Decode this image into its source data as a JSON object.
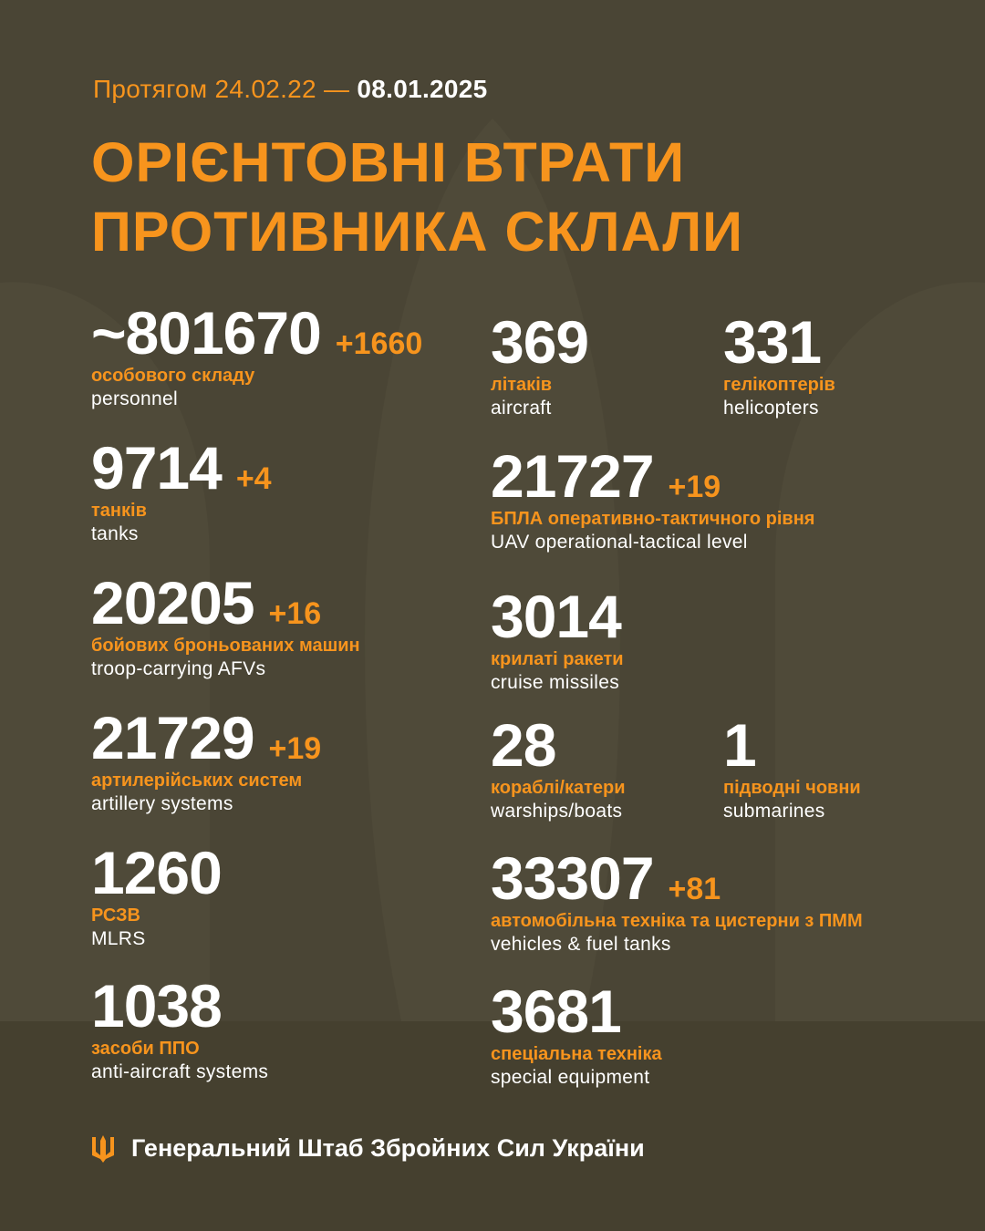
{
  "header": {
    "period_prefix": "Протягом 24.02.22 —",
    "period_end": "08.01.2025",
    "title_line1": "ОРІЄНТОВНІ ВТРАТИ",
    "title_line2": "ПРОТИВНИКА СКЛАЛИ"
  },
  "colors": {
    "background": "#4a4535",
    "accent": "#f7941d",
    "text": "#ffffff"
  },
  "stats": [
    {
      "value": "~801670",
      "delta": "+1660",
      "uk": "особового складу",
      "en": "personnel"
    },
    {
      "value": "9714",
      "delta": "+4",
      "uk": "танків",
      "en": "tanks"
    },
    {
      "value": "20205",
      "delta": "+16",
      "uk": "бойових броньованих машин",
      "en": "troop-carrying AFVs"
    },
    {
      "value": "21729",
      "delta": "+19",
      "uk": "артилерійських систем",
      "en": "artillery systems"
    },
    {
      "value": "1260",
      "delta": "",
      "uk": "РСЗВ",
      "en": "MLRS"
    },
    {
      "value": "1038",
      "delta": "",
      "uk": "засоби ППО",
      "en": "anti-aircraft systems"
    },
    {
      "value": "369",
      "delta": "",
      "uk": "літаків",
      "en": "aircraft"
    },
    {
      "value": "331",
      "delta": "",
      "uk": "гелікоптерів",
      "en": "helicopters"
    },
    {
      "value": "21727",
      "delta": "+19",
      "uk": "БПЛА оперативно-тактичного рівня",
      "en": "UAV operational-tactical level"
    },
    {
      "value": "3014",
      "delta": "",
      "uk": "крилаті ракети",
      "en": "cruise missiles"
    },
    {
      "value": "28",
      "delta": "",
      "uk": "кораблі/катери",
      "en": "warships/boats"
    },
    {
      "value": "1",
      "delta": "",
      "uk": "підводні човни",
      "en": "submarines"
    },
    {
      "value": "33307",
      "delta": "+81",
      "uk": "автомобільна техніка та цистерни з ПММ",
      "en": "vehicles & fuel tanks"
    },
    {
      "value": "3681",
      "delta": "",
      "uk": "спеціальна техніка",
      "en": "special equipment"
    }
  ],
  "footer": {
    "icon": "trident-icon",
    "text": "Генеральний Штаб Збройних Сил України"
  }
}
